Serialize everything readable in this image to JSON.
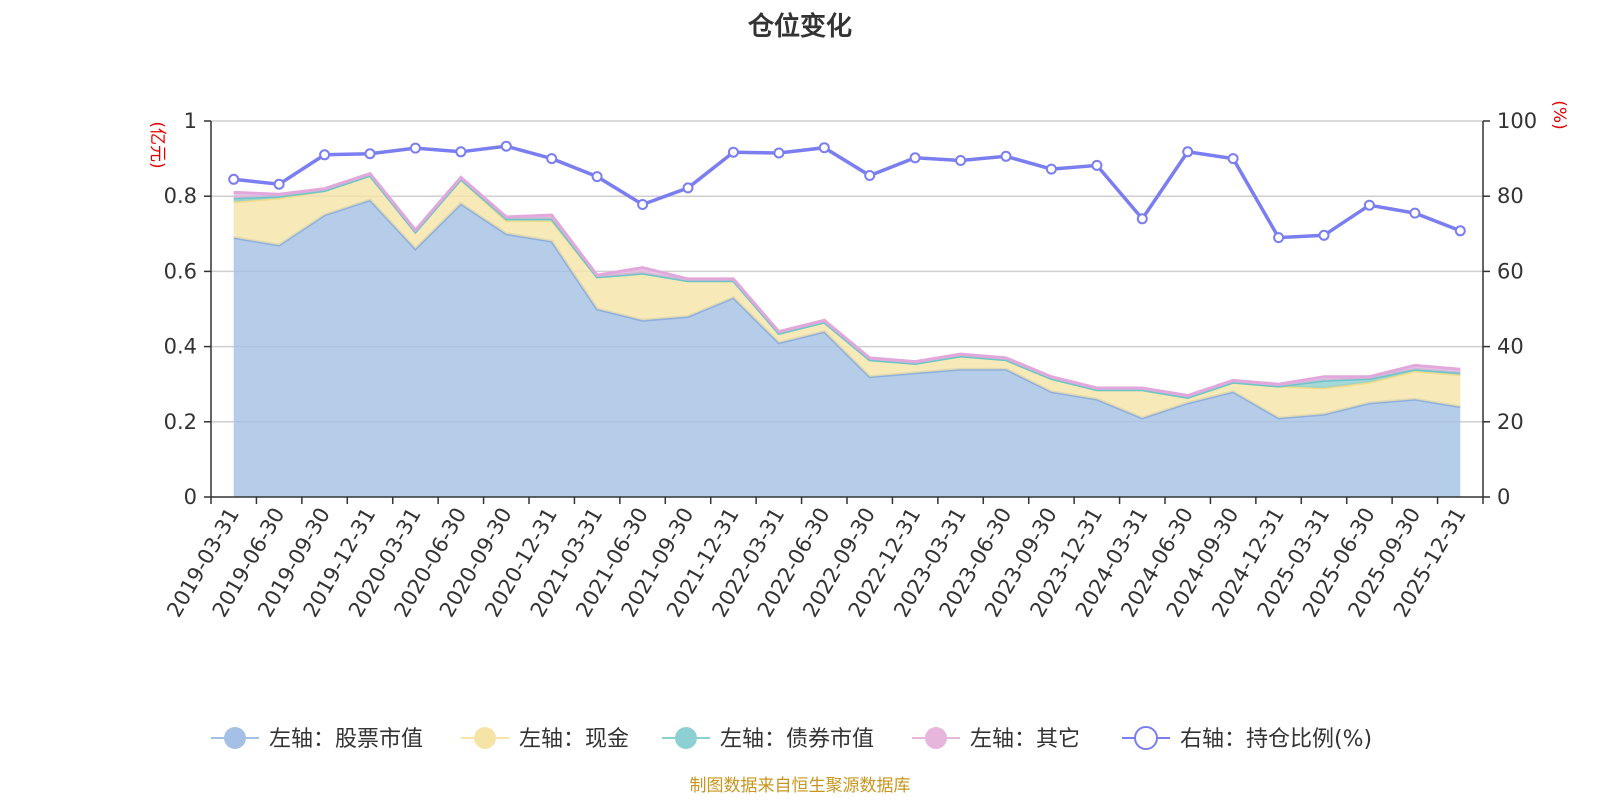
{
  "chart_data": {
    "type": "area",
    "title": "仓位变化",
    "source": "制图数据来自恒生聚源数据库",
    "left_axis": {
      "unit": "(亿元)",
      "min": 0,
      "max": 1,
      "ticks": [
        "0",
        "0.2",
        "0.4",
        "0.6",
        "0.8",
        "1"
      ]
    },
    "right_axis": {
      "unit": "(%)",
      "min": 0,
      "max": 100,
      "ticks": [
        "0",
        "20",
        "40",
        "60",
        "80",
        "100"
      ]
    },
    "categories": [
      "2019-03-31",
      "2019-06-30",
      "2019-09-30",
      "2019-12-31",
      "2020-03-31",
      "2020-06-30",
      "2020-09-30",
      "2020-12-31",
      "2021-03-31",
      "2021-06-30",
      "2021-09-30",
      "2021-12-31",
      "2022-03-31",
      "2022-06-30",
      "2022-09-30",
      "2022-12-31",
      "2023-03-31",
      "2023-06-30",
      "2023-09-30",
      "2023-12-31",
      "2024-03-31",
      "2024-06-30",
      "2024-09-30",
      "2024-12-31",
      "2025-03-31",
      "2025-06-30",
      "2025-09-30",
      "2025-12-31"
    ],
    "series": [
      {
        "name": "左轴：股票市值",
        "axis": "left",
        "kind": "stacked-area",
        "color": "#a4c0e4",
        "values": [
          0.69,
          0.67,
          0.75,
          0.79,
          0.66,
          0.78,
          0.7,
          0.68,
          0.5,
          0.47,
          0.48,
          0.53,
          0.41,
          0.44,
          0.32,
          0.33,
          0.34,
          0.34,
          0.28,
          0.26,
          0.21,
          0.25,
          0.28,
          0.21,
          0.22,
          0.25,
          0.26,
          0.24
        ]
      },
      {
        "name": "左轴：现金",
        "axis": "left",
        "kind": "stacked-area",
        "color": "#f5e4a6",
        "values": [
          0.095,
          0.125,
          0.065,
          0.065,
          0.045,
          0.065,
          0.035,
          0.055,
          0.085,
          0.125,
          0.095,
          0.045,
          0.025,
          0.025,
          0.045,
          0.025,
          0.035,
          0.025,
          0.035,
          0.025,
          0.075,
          0.015,
          0.025,
          0.085,
          0.07,
          0.055,
          0.075,
          0.085
        ]
      },
      {
        "name": "左轴：债券市值",
        "axis": "left",
        "kind": "stacked-area",
        "color": "#8dd0d3",
        "values": [
          0.01,
          0.005,
          0,
          0,
          0,
          0,
          0.005,
          0.005,
          0,
          0,
          0,
          0,
          0,
          0,
          0,
          0,
          0,
          0,
          0,
          0,
          0,
          0,
          0,
          0,
          0.02,
          0.01,
          0.005,
          0.005
        ]
      },
      {
        "name": "左轴：其它",
        "axis": "left",
        "kind": "stacked-area",
        "color": "#e6b6dc",
        "values": [
          0.015,
          0.005,
          0.005,
          0.005,
          0.005,
          0.005,
          0.005,
          0.01,
          0.005,
          0.015,
          0.005,
          0.005,
          0.005,
          0.005,
          0.005,
          0.005,
          0.005,
          0.005,
          0.005,
          0.005,
          0.005,
          0.005,
          0.005,
          0.005,
          0.01,
          0.005,
          0.01,
          0.01
        ]
      },
      {
        "name": "右轴：持仓比例(%)",
        "axis": "right",
        "kind": "line",
        "color": "#7b7ef0",
        "values": [
          84.5,
          83.2,
          91.0,
          91.3,
          92.8,
          91.8,
          93.3,
          90.0,
          85.2,
          77.8,
          82.2,
          91.7,
          91.5,
          92.9,
          85.5,
          90.2,
          89.5,
          90.6,
          87.2,
          88.2,
          74.0,
          91.8,
          90.0,
          69.0,
          69.6,
          77.6,
          75.5,
          70.8
        ]
      }
    ],
    "legend_position": "bottom-center",
    "grid": true
  }
}
